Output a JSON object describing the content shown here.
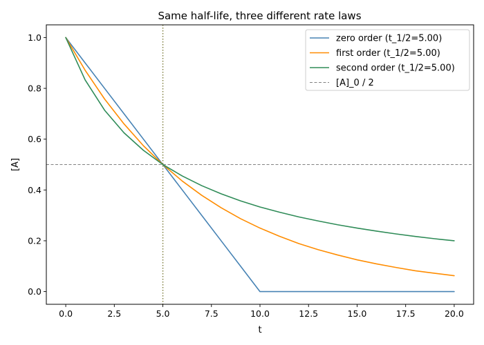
{
  "chart_data": {
    "type": "line",
    "title": "Same half-life, three different rate laws",
    "xlabel": "t",
    "ylabel": "[A]",
    "xlim": [
      -1,
      21
    ],
    "ylim": [
      -0.05,
      1.05
    ],
    "x_ticks": [
      0.0,
      2.5,
      5.0,
      7.5,
      10.0,
      12.5,
      15.0,
      17.5,
      20.0
    ],
    "x_tick_labels": [
      "0.0",
      "2.5",
      "5.0",
      "7.5",
      "10.0",
      "12.5",
      "15.0",
      "17.5",
      "20.0"
    ],
    "y_ticks": [
      0.0,
      0.2,
      0.4,
      0.6,
      0.8,
      1.0
    ],
    "y_tick_labels": [
      "0.0",
      "0.2",
      "0.4",
      "0.6",
      "0.8",
      "1.0"
    ],
    "grid": false,
    "legend_position": "top-right",
    "x": [
      0,
      1,
      2,
      3,
      4,
      5,
      6,
      7,
      8,
      9,
      10,
      11,
      12,
      13,
      14,
      15,
      16,
      17,
      18,
      19,
      20
    ],
    "series": [
      {
        "name": "zero order (t_1/2=5.00)",
        "color": "#4682b4",
        "values": [
          1.0,
          0.9,
          0.8,
          0.7,
          0.6,
          0.5,
          0.4,
          0.3,
          0.2,
          0.1,
          0.0,
          0.0,
          0.0,
          0.0,
          0.0,
          0.0,
          0.0,
          0.0,
          0.0,
          0.0,
          0.0
        ]
      },
      {
        "name": "first order (t_1/2=5.00)",
        "color": "#ff8c00",
        "values": [
          1.0,
          0.871,
          0.758,
          0.66,
          0.574,
          0.5,
          0.435,
          0.379,
          0.33,
          0.287,
          0.25,
          0.218,
          0.189,
          0.165,
          0.144,
          0.125,
          0.109,
          0.095,
          0.082,
          0.072,
          0.0625
        ]
      },
      {
        "name": "second order (t_1/2=5.00)",
        "color": "#2e8b57",
        "values": [
          1.0,
          0.833,
          0.714,
          0.625,
          0.556,
          0.5,
          0.455,
          0.417,
          0.385,
          0.357,
          0.333,
          0.3125,
          0.294,
          0.278,
          0.263,
          0.25,
          0.238,
          0.227,
          0.217,
          0.208,
          0.2
        ]
      }
    ],
    "reference_lines": [
      {
        "orientation": "horizontal",
        "value": 0.5,
        "style": "dashed",
        "color": "#808080",
        "name": "[A]_0 / 2"
      },
      {
        "orientation": "vertical",
        "value": 5.0,
        "style": "dotted",
        "color": "#7f7f3f"
      }
    ]
  }
}
